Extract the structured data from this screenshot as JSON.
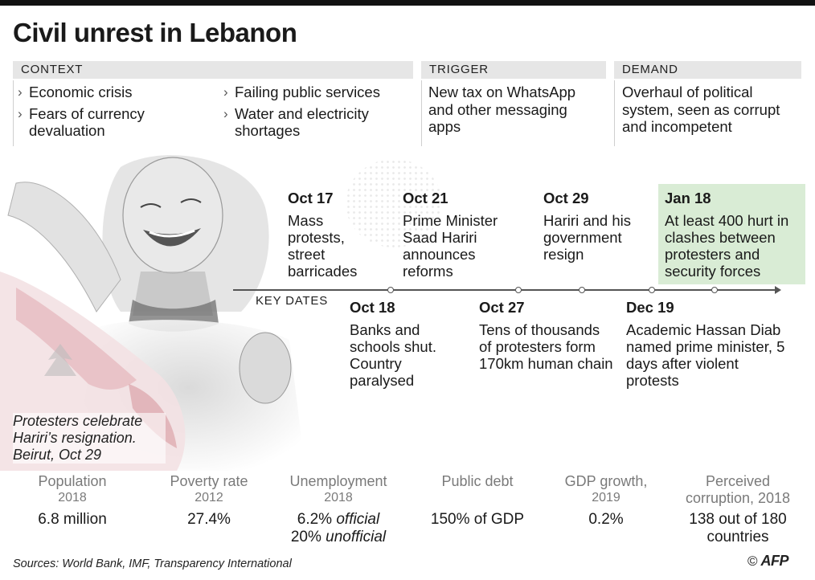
{
  "title": "Civil unrest in Lebanon",
  "context": {
    "heading": "Context",
    "col1": [
      "Economic crisis",
      "Fears of currency devaluation"
    ],
    "col2": [
      "Failing public services",
      "Water and electricity shortages"
    ]
  },
  "trigger": {
    "heading": "Trigger",
    "text": "New tax on WhatsApp and other messaging apps"
  },
  "demand": {
    "heading": "Demand",
    "text": "Overhaul of political system, seen as corrupt and incompetent"
  },
  "photo": {
    "caption": "Protesters celebrate Hariri’s resignation. Beirut, Oct 29"
  },
  "timeline": {
    "label": "Key dates",
    "events": [
      {
        "date": "Oct 17",
        "text": "Mass protests, street barricades"
      },
      {
        "date": "Oct 18",
        "text": "Banks and schools shut. Country paralysed"
      },
      {
        "date": "Oct 21",
        "text": "Prime Minister Saad Hariri announces reforms"
      },
      {
        "date": "Oct 27",
        "text": "Tens of thousands of protesters form 170km human chain"
      },
      {
        "date": "Oct 29",
        "text": "Hariri and his government resign"
      },
      {
        "date": "Dec 19",
        "text": "Academic Hassan Diab named prime minister, 5 days after violent protests"
      },
      {
        "date": "Jan 18",
        "text": "At least 400 hurt in clashes between protesters and security forces"
      }
    ]
  },
  "stats": [
    {
      "label": "Population",
      "year": "2018",
      "value": "6.8 million"
    },
    {
      "label": "Poverty rate",
      "year": "2012",
      "value": "27.4%"
    },
    {
      "label": "Unemployment",
      "year": "2018",
      "value1": "6.2%",
      "value1_note": "official",
      "value2": "20%",
      "value2_note": "unofficial"
    },
    {
      "label": "Public debt",
      "year": "",
      "value": "150% of GDP"
    },
    {
      "label": "GDP growth,",
      "year": "2019",
      "value": "0.2%"
    },
    {
      "label": "Perceived",
      "year": "corruption, 2018",
      "value": "138 out of 180 countries"
    }
  ],
  "footer": {
    "sources": "Sources: World Bank, IMF, Transparency International",
    "copyright": "©",
    "logo": "AFP"
  },
  "colors": {
    "highlight": "#d9ecd5",
    "header_bg": "#e6e6e6"
  }
}
